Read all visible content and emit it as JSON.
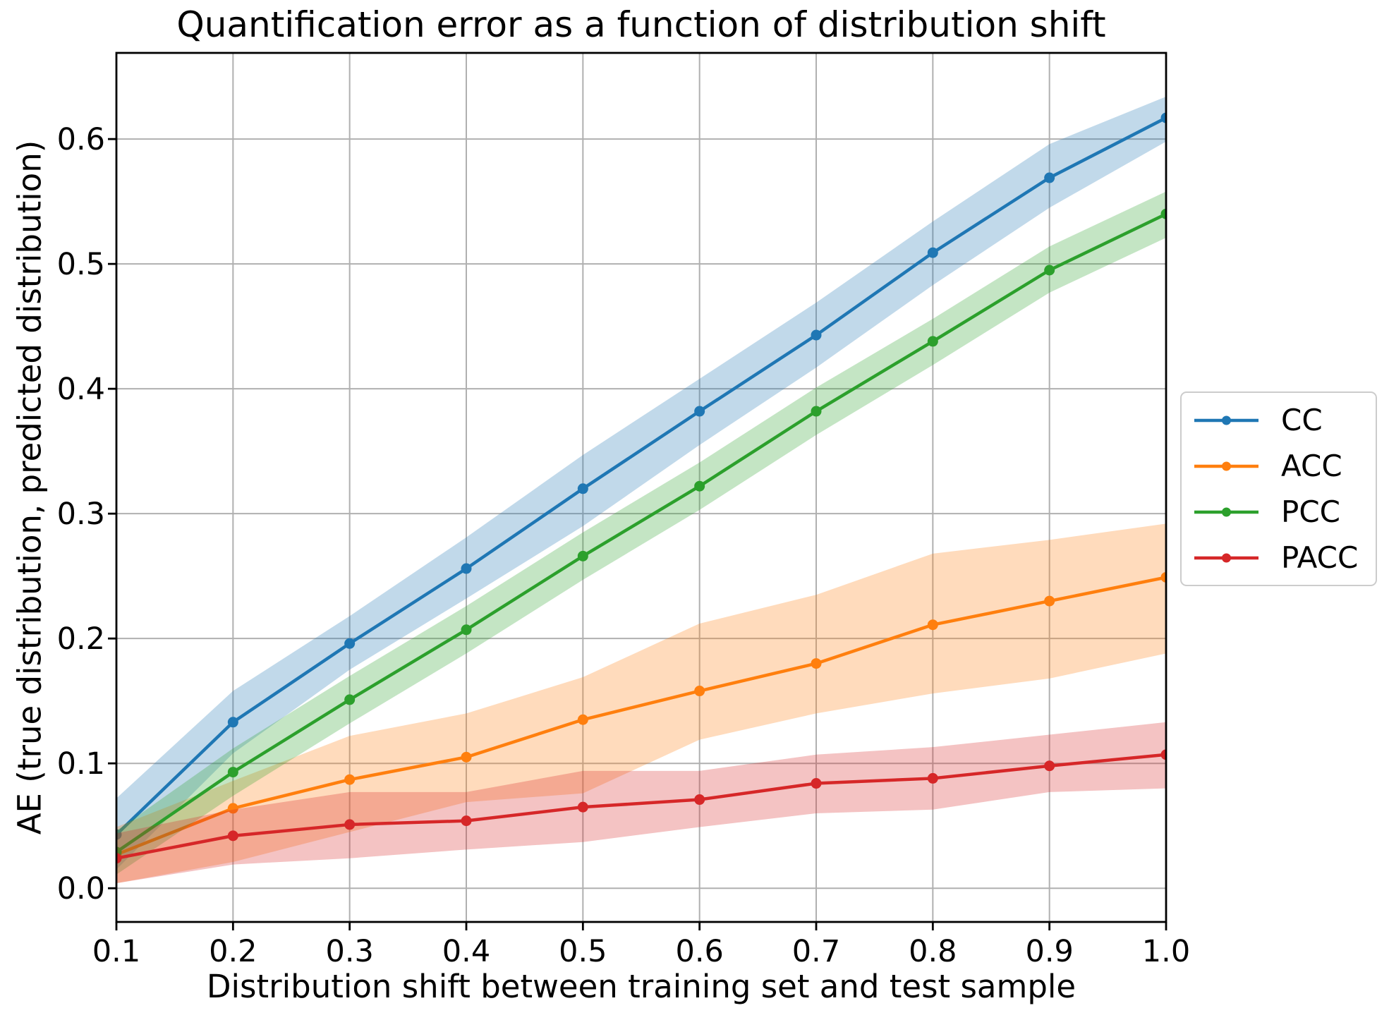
{
  "chart_data": {
    "type": "line",
    "title": "Quantification error as a function of distribution shift",
    "xlabel": "Distribution shift between training set and test sample",
    "ylabel": "AE (true distribution, predicted distribution)",
    "grid": true,
    "grid_color": "#b0b0b0",
    "axes_color": "#000000",
    "band_opacity": 0.28,
    "x": [
      0.1,
      0.2,
      0.3,
      0.4,
      0.5,
      0.6,
      0.7,
      0.8,
      0.9,
      1.0
    ],
    "xlim": [
      0.1,
      1.0
    ],
    "ylim": [
      -0.027,
      0.669
    ],
    "xticks": {
      "values": [
        0.1,
        0.2,
        0.3,
        0.4,
        0.5,
        0.6,
        0.7,
        0.8,
        0.9,
        1.0
      ],
      "labels": [
        "0.1",
        "0.2",
        "0.3",
        "0.4",
        "0.5",
        "0.6",
        "0.7",
        "0.8",
        "0.9",
        "1.0"
      ]
    },
    "yticks": {
      "values": [
        0.0,
        0.1,
        0.2,
        0.3,
        0.4,
        0.5,
        0.6
      ],
      "labels": [
        "0.0",
        "0.1",
        "0.2",
        "0.3",
        "0.4",
        "0.5",
        "0.6"
      ]
    },
    "legend": {
      "position": "outside-center-right",
      "border_color": "#cccccc",
      "background": "#ffffff",
      "entries": [
        "CC",
        "ACC",
        "PCC",
        "PACC"
      ]
    },
    "series": [
      {
        "name": "CC",
        "color": "#1f77b4",
        "values": [
          0.043,
          0.133,
          0.196,
          0.256,
          0.32,
          0.382,
          0.443,
          0.509,
          0.569,
          0.617
        ],
        "band_lower": [
          0.015,
          0.108,
          0.175,
          0.232,
          0.29,
          0.355,
          0.417,
          0.483,
          0.545,
          0.598
        ],
        "band_upper": [
          0.072,
          0.158,
          0.218,
          0.281,
          0.347,
          0.408,
          0.469,
          0.534,
          0.596,
          0.634
        ]
      },
      {
        "name": "ACC",
        "color": "#ff7f0e",
        "values": [
          0.027,
          0.064,
          0.087,
          0.105,
          0.135,
          0.158,
          0.18,
          0.211,
          0.23,
          0.249
        ],
        "band_lower": [
          0.004,
          0.021,
          0.045,
          0.069,
          0.076,
          0.119,
          0.14,
          0.156,
          0.168,
          0.188
        ],
        "band_upper": [
          0.049,
          0.086,
          0.122,
          0.14,
          0.169,
          0.212,
          0.235,
          0.268,
          0.279,
          0.292
        ]
      },
      {
        "name": "PCC",
        "color": "#2ca02c",
        "values": [
          0.029,
          0.093,
          0.151,
          0.207,
          0.266,
          0.322,
          0.382,
          0.438,
          0.495,
          0.54
        ],
        "band_lower": [
          0.011,
          0.074,
          0.132,
          0.188,
          0.247,
          0.303,
          0.363,
          0.419,
          0.477,
          0.521
        ],
        "band_upper": [
          0.046,
          0.112,
          0.17,
          0.226,
          0.285,
          0.341,
          0.401,
          0.456,
          0.514,
          0.558
        ]
      },
      {
        "name": "PACC",
        "color": "#d62728",
        "values": [
          0.024,
          0.042,
          0.051,
          0.054,
          0.065,
          0.071,
          0.084,
          0.088,
          0.098,
          0.107
        ],
        "band_lower": [
          0.004,
          0.019,
          0.024,
          0.031,
          0.037,
          0.049,
          0.06,
          0.063,
          0.077,
          0.08
        ],
        "band_upper": [
          0.044,
          0.063,
          0.077,
          0.077,
          0.094,
          0.094,
          0.107,
          0.113,
          0.123,
          0.133
        ]
      }
    ]
  }
}
